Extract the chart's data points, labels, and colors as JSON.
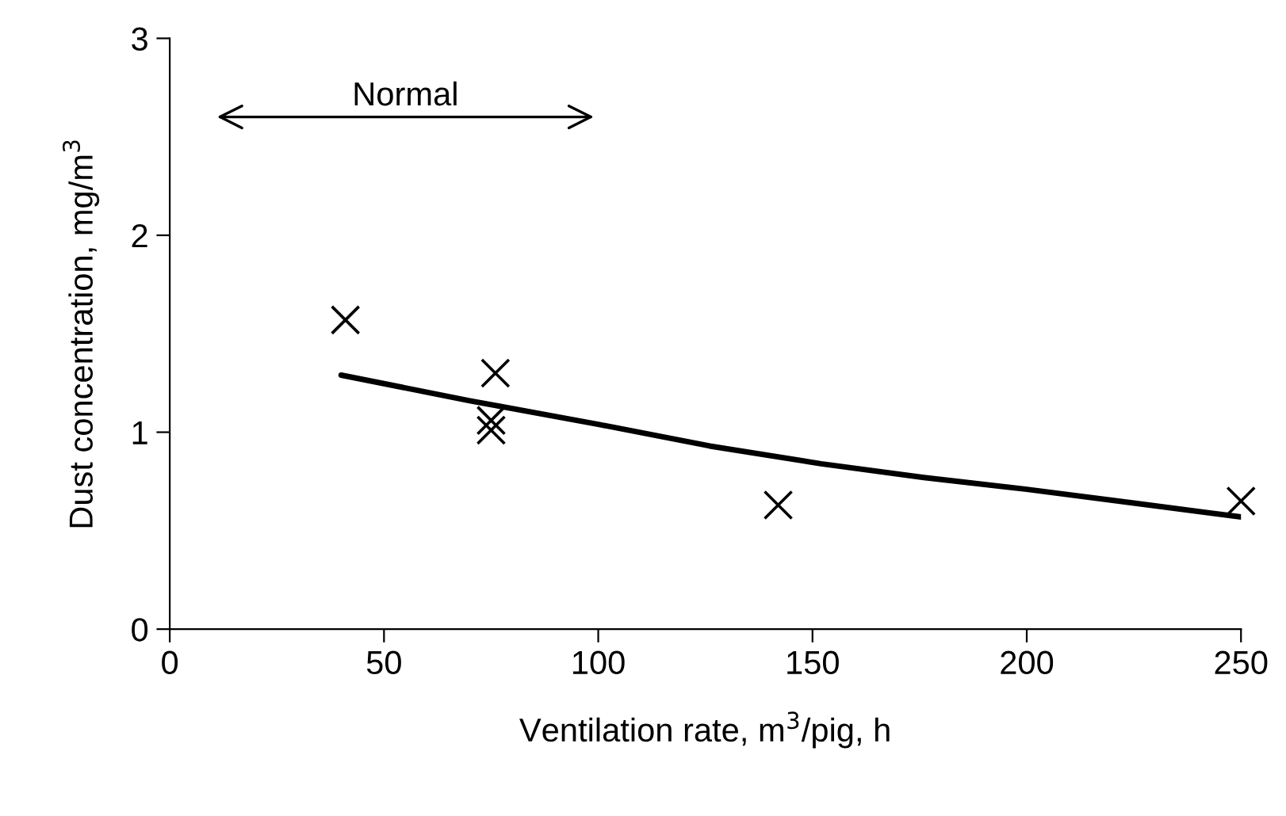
{
  "chart_data": {
    "type": "scatter",
    "xlabel": "Ventilation rate, m$^{3}$/pig, h",
    "ylabel": "Dust concentration, mg/m$^{3}$",
    "xlim": [
      0,
      250
    ],
    "xticks": [
      0,
      50,
      100,
      150,
      200,
      250
    ],
    "ylim": [
      0,
      3
    ],
    "yticks": [
      0,
      1,
      2,
      3
    ],
    "grid": false,
    "legend": false,
    "series": [
      {
        "color": "#000000",
        "marker": "cross",
        "x": [
          41,
          76,
          75,
          75,
          142,
          250
        ],
        "values": [
          1.57,
          1.3,
          1.06,
          1.01,
          0.63,
          0.65
        ]
      },
      {
        "type": "line",
        "color": "#000000",
        "marker": "none",
        "line_style": "solid",
        "x": [
          40,
          70,
          100,
          126,
          152,
          176,
          200,
          225,
          250
        ],
        "values": [
          1.29,
          1.16,
          1.04,
          0.93,
          0.84,
          0.77,
          0.71,
          0.64,
          0.57
        ]
      }
    ],
    "annotations": [
      "Normal"
    ]
  }
}
